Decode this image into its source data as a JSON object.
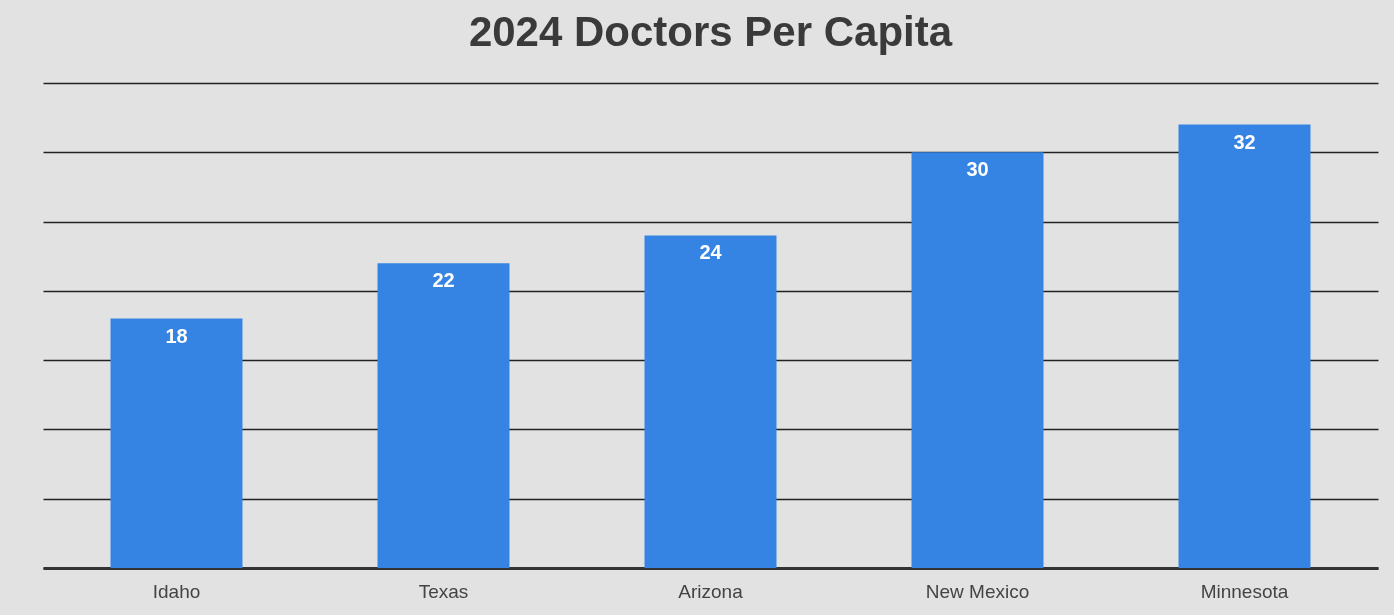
{
  "chart_data": {
    "type": "bar",
    "title": "2024 Doctors Per Capita",
    "categories": [
      "Idaho",
      "Texas",
      "Arizona",
      "New Mexico",
      "Minnesota"
    ],
    "values": [
      18,
      22,
      24,
      30,
      32
    ],
    "color": "#3584e4",
    "ylim": [
      0,
      35
    ],
    "yticks": [
      {
        "value": 0,
        "label": null
      },
      {
        "value": 5,
        "label": null
      },
      {
        "value": 10,
        "label": null
      },
      {
        "value": 15,
        "label": null
      },
      {
        "value": 20,
        "label": null
      },
      {
        "value": 25,
        "label": null
      },
      {
        "value": 30,
        "label": null
      },
      {
        "value": 35,
        "label": null
      }
    ],
    "grid": "y",
    "data_labels": true,
    "tick_labels": "x"
  }
}
